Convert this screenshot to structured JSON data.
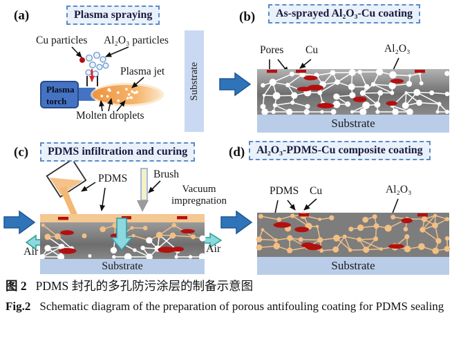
{
  "panels": {
    "a": {
      "letter": "(a)",
      "title": "Plasma spraying",
      "labels": {
        "cu_particles": "Cu particles",
        "al2o3_particles": "Al₂O₃ particles",
        "plasma_jet": "Plasma jet",
        "plasma_torch": "Plasma torch",
        "molten_droplets": "Molten droplets",
        "substrate": "Substrate"
      }
    },
    "b": {
      "letter": "(b)",
      "title": "As-sprayed Al₂O₃-Cu coating",
      "labels": {
        "pores": "Pores",
        "cu": "Cu",
        "al2o3": "Al₂O₃",
        "substrate": "Substrate"
      }
    },
    "c": {
      "letter": "(c)",
      "title": "PDMS infiltration and curing",
      "labels": {
        "pdms": "PDMS",
        "brush": "Brush",
        "vacuum": "Vacuum impregnation",
        "air_left": "Air",
        "air_right": "Air",
        "substrate": "Substrate"
      }
    },
    "d": {
      "letter": "(d)",
      "title": "Al₂O₃-PDMS-Cu composite coating",
      "labels": {
        "pdms": "PDMS",
        "cu": "Cu",
        "al2o3": "Al₂O₃",
        "substrate": "Substrate"
      }
    }
  },
  "caption": {
    "zh_prefix": "图 2",
    "zh_text": "PDMS 封孔的多孔防污涂层的制备示意图",
    "en_prefix": "Fig.2",
    "en_text": "Schematic diagram of the preparation of porous antifouling coating for PDMS sealing"
  },
  "colors": {
    "title_box_bg": "#e9f1fb",
    "title_box_border": "#5b8ac5",
    "title_text": "#1a1a3f",
    "flow_arrow_blue": "#2f74b8",
    "torch_blue": "#4573c4",
    "plasma_orange": "#f2a052",
    "pdms_orange": "#f2bf85",
    "cu_red": "#b40f0f",
    "pore_white": "#ffffff",
    "coating_gray": "#7d7d7d",
    "substrate_blue": "#b9cde8",
    "cyan_arrow": "#8bd8df"
  }
}
